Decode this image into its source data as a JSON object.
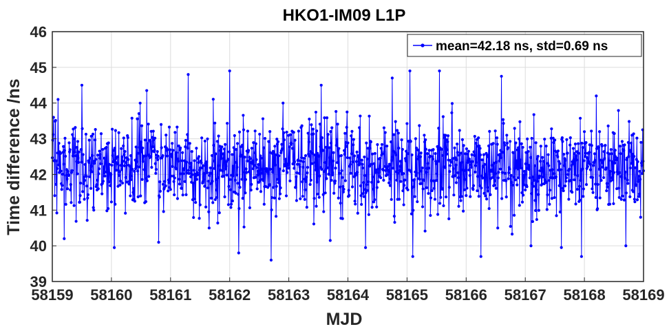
{
  "chart_data": {
    "type": "line",
    "title": "HKO1-IM09 L1P",
    "xlabel": "MJD",
    "ylabel": "Time difference /ns",
    "xlim": [
      58159,
      58169
    ],
    "ylim": [
      39,
      46
    ],
    "xticks": [
      58159,
      58160,
      58161,
      58162,
      58163,
      58164,
      58165,
      58166,
      58167,
      58168,
      58169
    ],
    "yticks": [
      39,
      40,
      41,
      42,
      43,
      44,
      45,
      46
    ],
    "grid": true,
    "legend_position": "top-right",
    "series": [
      {
        "name": "mean=42.18 ns, std=0.69 ns",
        "color": "#0000ff",
        "marker": "dot",
        "mean": 42.18,
        "std": 0.69,
        "x_step": 0.006944,
        "points_count": 1441,
        "sampled_points": [
          [
            58159.02,
            43.6
          ],
          [
            58159.1,
            44.1
          ],
          [
            58159.2,
            40.2
          ],
          [
            58159.5,
            44.5
          ],
          [
            58159.7,
            41.0
          ],
          [
            58160.05,
            39.95
          ],
          [
            58160.6,
            44.35
          ],
          [
            58160.8,
            40.1
          ],
          [
            58161.3,
            44.8
          ],
          [
            58161.65,
            40.5
          ],
          [
            58162.0,
            44.9
          ],
          [
            58162.15,
            39.8
          ],
          [
            58162.7,
            39.6
          ],
          [
            58162.9,
            44.0
          ],
          [
            58163.55,
            44.5
          ],
          [
            58163.7,
            40.15
          ],
          [
            58164.3,
            39.95
          ],
          [
            58164.75,
            44.7
          ],
          [
            58165.05,
            44.9
          ],
          [
            58165.1,
            39.7
          ],
          [
            58165.55,
            44.9
          ],
          [
            58166.25,
            39.7
          ],
          [
            58166.6,
            44.75
          ],
          [
            58167.1,
            40.0
          ],
          [
            58167.95,
            39.7
          ],
          [
            58168.2,
            44.2
          ],
          [
            58168.7,
            40.0
          ],
          [
            58168.95,
            40.8
          ]
        ]
      }
    ]
  }
}
